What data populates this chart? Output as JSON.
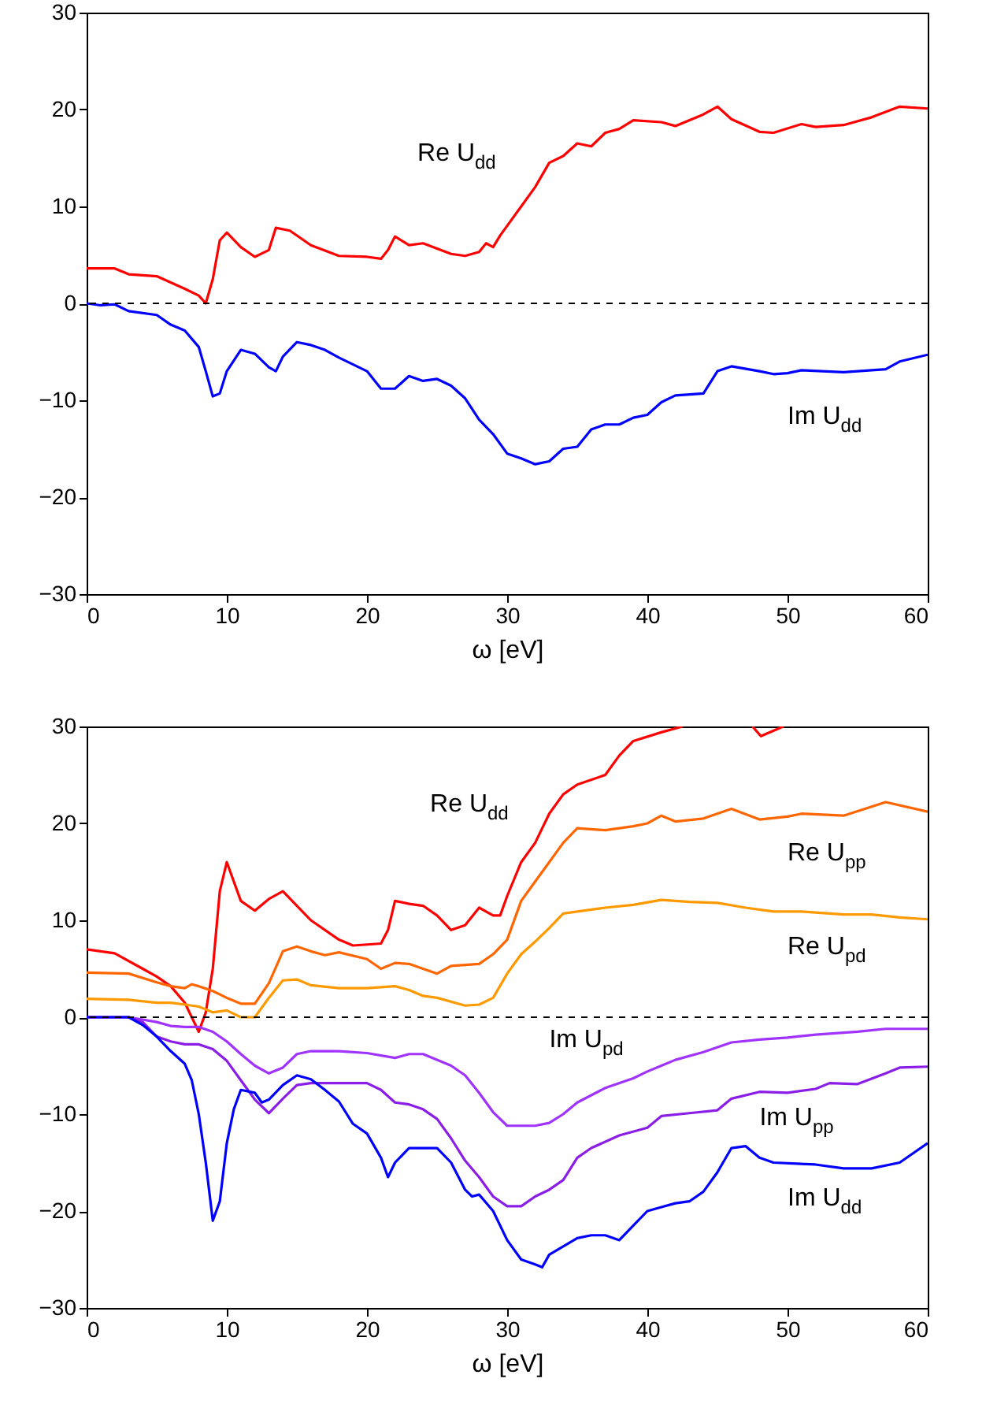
{
  "chart_data": [
    {
      "type": "line",
      "xlabel": "ω [eV]",
      "xlim": [
        0,
        60
      ],
      "xticks": [
        0,
        10,
        20,
        30,
        40,
        50,
        60
      ],
      "ylim": [
        -30,
        30
      ],
      "yticks": [
        -30,
        -20,
        -10,
        0,
        10,
        20,
        30
      ],
      "grid": false,
      "ref_lines": [
        {
          "axis": "y",
          "value": 0,
          "color": "#000000",
          "line_style": "dashed"
        }
      ],
      "series": [
        {
          "name": "Re U$_{dd}$",
          "color": "#ff0000",
          "x": [
            0,
            2,
            3,
            5,
            7,
            8,
            8.5,
            9,
            9.5,
            10,
            11,
            12,
            13,
            13.5,
            14.5,
            16,
            18,
            20,
            21,
            21.5,
            22,
            23,
            24,
            26,
            27,
            28,
            28.5,
            29,
            29.5,
            30,
            31,
            32,
            33,
            34,
            35,
            36,
            37,
            38,
            39,
            41,
            42,
            44,
            45,
            46,
            48,
            49,
            51,
            52,
            54,
            56,
            58,
            60
          ],
          "values": [
            3.6,
            3.6,
            3.0,
            2.8,
            1.5,
            0.8,
            0,
            2.5,
            6.5,
            7.3,
            5.8,
            4.8,
            5.5,
            7.8,
            7.5,
            6,
            4.9,
            4.8,
            4.6,
            5.5,
            6.9,
            6,
            6.2,
            5.1,
            4.9,
            5.3,
            6.2,
            5.8,
            7,
            8,
            10,
            12,
            14.5,
            15.2,
            16.5,
            16.2,
            17.6,
            18,
            18.9,
            18.7,
            18.3,
            19.5,
            20.3,
            19,
            17.7,
            17.6,
            18.5,
            18.2,
            18.4,
            19.2,
            20.3,
            20.1
          ]
        },
        {
          "name": "Im U$_{dd}$",
          "color": "#0000ff",
          "x": [
            0,
            1,
            2,
            3,
            5,
            6,
            7,
            8,
            8.5,
            9,
            9.5,
            10,
            11,
            12,
            13,
            13.5,
            14,
            15,
            16,
            17,
            18,
            20,
            21,
            22,
            23,
            24,
            25,
            26,
            27,
            28,
            29,
            30,
            31,
            32,
            33,
            34,
            35,
            36,
            37,
            38,
            39,
            40,
            41,
            42,
            44,
            45,
            46,
            48,
            49,
            50,
            51,
            54,
            57,
            58,
            60
          ],
          "values": [
            0,
            -0.2,
            -0.1,
            -0.8,
            -1.2,
            -2.2,
            -2.8,
            -4.5,
            -7,
            -9.6,
            -9.3,
            -7,
            -4.8,
            -5.2,
            -6.6,
            -7,
            -5.5,
            -4,
            -4.3,
            -4.8,
            -5.6,
            -7,
            -8.8,
            -8.8,
            -7.5,
            -8,
            -7.8,
            -8.5,
            -9.8,
            -12,
            -13.5,
            -15.5,
            -16,
            -16.6,
            -16.3,
            -15,
            -14.8,
            -13,
            -12.5,
            -12.5,
            -11.8,
            -11.5,
            -10.2,
            -9.5,
            -9.3,
            -7,
            -6.5,
            -7,
            -7.3,
            -7.2,
            -6.9,
            -7.1,
            -6.8,
            -6,
            -5.3
          ]
        }
      ]
    },
    {
      "type": "line",
      "xlabel": "ω [eV]",
      "xlim": [
        0,
        60
      ],
      "xticks": [
        0,
        10,
        20,
        30,
        40,
        50,
        60
      ],
      "ylim": [
        -30,
        30
      ],
      "yticks": [
        -30,
        -20,
        -10,
        0,
        10,
        20,
        30
      ],
      "grid": false,
      "ref_lines": [
        {
          "axis": "y",
          "value": 0,
          "color": "#000000",
          "line_style": "dashed"
        }
      ],
      "series": [
        {
          "name": "Re U$_{dd}$",
          "color": "#ff0000",
          "x": [
            0,
            2,
            4,
            5,
            6,
            7,
            7.5,
            8,
            8.5,
            9,
            9.5,
            10,
            11,
            12,
            13,
            14,
            15,
            16,
            18,
            19,
            20,
            21,
            21.5,
            22,
            23,
            24,
            25,
            26,
            27,
            28,
            29,
            29.5,
            30,
            31,
            32,
            33,
            34,
            35,
            37,
            38,
            39,
            41,
            42.5,
            43,
            47.5,
            48.1,
            49.7
          ],
          "values": [
            7,
            6.6,
            5,
            4.2,
            3.2,
            1.5,
            0,
            -1.5,
            0.5,
            5,
            13,
            16,
            12,
            11,
            12.2,
            13,
            11.5,
            10,
            8,
            7.4,
            7.5,
            7.6,
            9,
            12,
            11.7,
            11.5,
            10.5,
            9,
            9.5,
            11.3,
            10.5,
            10.5,
            12.5,
            16,
            18,
            21,
            23,
            24,
            25,
            27,
            28.5,
            29.4,
            30,
            null,
            30,
            29,
            30
          ]
        },
        {
          "name": "Re U$_{pp}$",
          "color": "#ff6600",
          "x": [
            0,
            3,
            5,
            6,
            7,
            7.5,
            8,
            9,
            10,
            11,
            12,
            13,
            14,
            15,
            16,
            17,
            18,
            20,
            21,
            22,
            23,
            24,
            25,
            26,
            28,
            29,
            30,
            31,
            32,
            33,
            34,
            35,
            37,
            39,
            40,
            41,
            42,
            44,
            46,
            48,
            50,
            51,
            54,
            57,
            60
          ],
          "values": [
            4.6,
            4.5,
            3.6,
            3.2,
            3,
            3.4,
            3.2,
            2.7,
            2,
            1.4,
            1.4,
            3.5,
            6.8,
            7.3,
            6.8,
            6.4,
            6.7,
            6,
            5,
            5.6,
            5.5,
            5,
            4.5,
            5.3,
            5.5,
            6.5,
            8,
            12,
            14,
            16,
            18,
            19.5,
            19.3,
            19.7,
            20,
            20.8,
            20.2,
            20.5,
            21.5,
            20.4,
            20.7,
            21,
            20.8,
            22.2,
            21.2
          ]
        },
        {
          "name": "Re U$_{pd}$",
          "color": "#ff9900",
          "x": [
            0,
            3,
            5,
            6,
            7,
            8,
            9,
            10,
            11,
            12,
            13,
            14,
            15,
            16,
            18,
            20,
            22,
            23,
            24,
            25,
            27,
            28,
            29,
            30,
            31,
            32,
            33,
            34,
            35,
            37,
            39,
            41,
            43,
            45,
            47,
            49,
            51,
            54,
            56,
            58,
            60
          ],
          "values": [
            1.9,
            1.8,
            1.5,
            1.5,
            1.3,
            1.1,
            0.5,
            0.7,
            0,
            0,
            2,
            3.8,
            3.9,
            3.3,
            3,
            3,
            3.2,
            2.8,
            2.2,
            2,
            1.2,
            1.3,
            2,
            4.5,
            6.5,
            7.8,
            9.2,
            10.7,
            10.9,
            11.3,
            11.6,
            12.1,
            11.9,
            11.8,
            11.3,
            10.9,
            10.9,
            10.6,
            10.6,
            10.3,
            10.1
          ]
        },
        {
          "name": "Im U$_{pd}$",
          "color": "#a033ff",
          "x": [
            0,
            3,
            5,
            6,
            7,
            8,
            9,
            10,
            11,
            12,
            13,
            14,
            15,
            16,
            18,
            20,
            22,
            23,
            24,
            26,
            27,
            28,
            29,
            30,
            32,
            33,
            34,
            35,
            37,
            39,
            40,
            41,
            42,
            44,
            46,
            48,
            50,
            52,
            55,
            57,
            60
          ],
          "values": [
            0,
            0,
            -0.5,
            -0.9,
            -1,
            -1,
            -1.5,
            -2.5,
            -3.8,
            -5,
            -5.8,
            -5.2,
            -3.8,
            -3.5,
            -3.5,
            -3.7,
            -4.2,
            -3.8,
            -3.8,
            -5,
            -6,
            -7.8,
            -9.8,
            -11.2,
            -11.2,
            -10.9,
            -10,
            -8.8,
            -7.3,
            -6.3,
            -5.6,
            -5,
            -4.4,
            -3.6,
            -2.6,
            -2.3,
            -2.1,
            -1.8,
            -1.5,
            -1.2,
            -1.2
          ]
        },
        {
          "name": "Im U$_{pp}$",
          "color": "#8a1ee6",
          "x": [
            0,
            3,
            4,
            5,
            6,
            7,
            8,
            9,
            10,
            11,
            12,
            13,
            14,
            15,
            16,
            18,
            20,
            21,
            22,
            23,
            24,
            25,
            26,
            27,
            28,
            29,
            30,
            31,
            32,
            33,
            34,
            35,
            36,
            38,
            40,
            41,
            43,
            45,
            46,
            48,
            50,
            52,
            53,
            55,
            57,
            58,
            60
          ],
          "values": [
            0,
            0,
            -0.5,
            -2,
            -2.5,
            -2.8,
            -2.8,
            -3.3,
            -4.5,
            -6.5,
            -8.5,
            -9.9,
            -8.4,
            -7,
            -6.8,
            -6.8,
            -6.8,
            -7.5,
            -8.8,
            -9,
            -9.5,
            -10.5,
            -12.5,
            -14.8,
            -16.5,
            -18.5,
            -19.5,
            -19.5,
            -18.5,
            -17.8,
            -16.8,
            -14.5,
            -13.5,
            -12.2,
            -11.4,
            -10.2,
            -9.9,
            -9.6,
            -8.4,
            -7.7,
            -7.8,
            -7.4,
            -6.8,
            -6.9,
            -5.8,
            -5.2,
            -5.1
          ]
        },
        {
          "name": "Im U$_{dd}$",
          "color": "#0000ff",
          "x": [
            0,
            3,
            4,
            5,
            6,
            7,
            7.5,
            8,
            8.5,
            9,
            9.5,
            10,
            10.5,
            11,
            12,
            12.5,
            13,
            14,
            15,
            16,
            17,
            18,
            19,
            20,
            21,
            21.5,
            22,
            23,
            24,
            25,
            26,
            27,
            27.5,
            28,
            29,
            30,
            31,
            32,
            32.5,
            33,
            35,
            36,
            37,
            38,
            39,
            40,
            41,
            42,
            43,
            44,
            45,
            46,
            47,
            48,
            49,
            52,
            54,
            56,
            58,
            60
          ],
          "values": [
            0,
            0,
            -0.8,
            -2,
            -3.5,
            -4.8,
            -6.5,
            -10,
            -15,
            -21,
            -19,
            -13,
            -9.5,
            -7.5,
            -7.8,
            -8.8,
            -8.5,
            -7,
            -6,
            -6.4,
            -7.5,
            -8.7,
            -11,
            -12,
            -14.5,
            -16.5,
            -15,
            -13.5,
            -13.5,
            -13.5,
            -15,
            -17.8,
            -18.5,
            -18.3,
            -20,
            -23,
            -25,
            -25.5,
            -25.8,
            -24.5,
            -22.8,
            -22.5,
            -22.5,
            -23,
            -21.5,
            -20,
            -19.6,
            -19.2,
            -19,
            -18,
            -16,
            -13.5,
            -13.3,
            -14.5,
            -15,
            -15.2,
            -15.6,
            -15.6,
            -15,
            -13
          ]
        }
      ]
    }
  ]
}
